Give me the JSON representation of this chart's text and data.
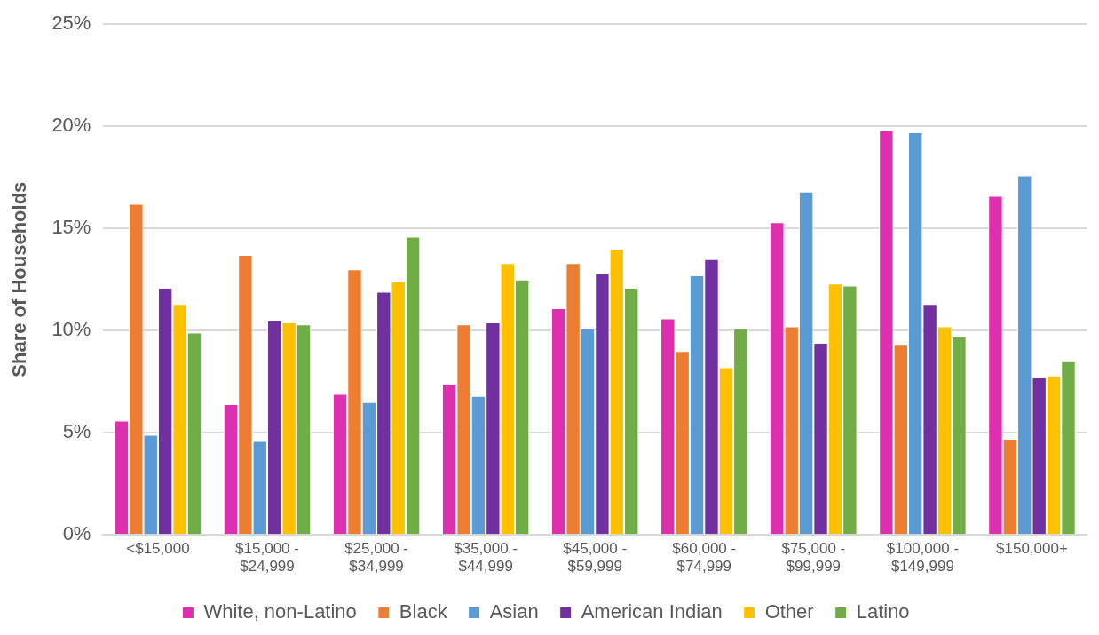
{
  "chart_data": {
    "type": "bar",
    "ylabel": "Share of Households",
    "categories": [
      "<$15,000",
      "$15,000 - $24,999",
      "$25,000 - $34,999",
      "$35,000 - $44,999",
      "$45,000 - $59,999",
      "$60,000 - $74,999",
      "$75,000 - $99,999",
      "$100,000 - $149,999",
      "$150,000+"
    ],
    "series": [
      {
        "name": "White, non-Latino",
        "color": "#dd2fae",
        "values": [
          5.6,
          6.4,
          6.9,
          7.4,
          11.1,
          10.6,
          15.3,
          19.8,
          16.6
        ]
      },
      {
        "name": "Black",
        "color": "#ed7d31",
        "values": [
          16.2,
          13.7,
          13.0,
          10.3,
          13.3,
          9.0,
          10.2,
          9.3,
          4.7
        ]
      },
      {
        "name": "Asian",
        "color": "#5b9bd5",
        "values": [
          4.9,
          4.6,
          6.5,
          6.8,
          10.1,
          12.7,
          16.8,
          19.7,
          17.6
        ]
      },
      {
        "name": "American Indian",
        "color": "#7030a0",
        "values": [
          12.1,
          10.5,
          11.9,
          10.4,
          12.8,
          13.5,
          9.4,
          11.3,
          7.7
        ]
      },
      {
        "name": "Other",
        "color": "#ffc000",
        "values": [
          11.3,
          10.4,
          12.4,
          13.3,
          14.0,
          8.2,
          12.3,
          10.2,
          7.8
        ]
      },
      {
        "name": "Latino",
        "color": "#70ad47",
        "values": [
          9.9,
          10.3,
          14.6,
          12.5,
          12.1,
          10.1,
          12.2,
          9.7,
          8.5
        ]
      }
    ],
    "ylim": [
      0,
      25
    ],
    "yticks": [
      {
        "value": 0,
        "label": "0%"
      },
      {
        "value": 5,
        "label": "5%"
      },
      {
        "value": 10,
        "label": "10%"
      },
      {
        "value": 15,
        "label": "15%"
      },
      {
        "value": 20,
        "label": "20%"
      },
      {
        "value": 25,
        "label": "25%"
      }
    ],
    "grid": "y",
    "legend": "bottom"
  }
}
